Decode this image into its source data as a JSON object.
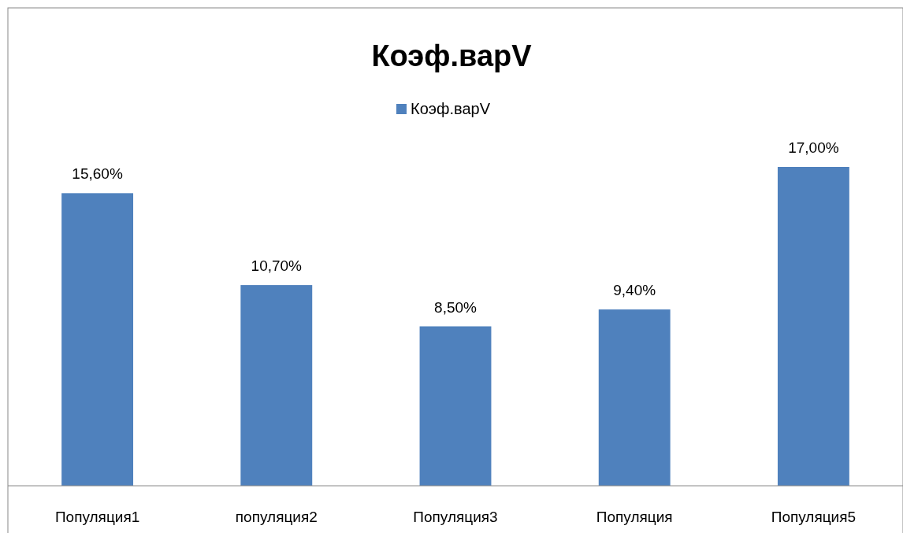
{
  "chart_data": {
    "type": "bar",
    "title": "Коэф.варV",
    "categories": [
      "Популяция1",
      "популяция2",
      "Популяция3",
      "Популяция",
      "Популяция5"
    ],
    "series": [
      {
        "name": "Коэф.варV",
        "color": "#4f81bd",
        "values": [
          15.6,
          10.7,
          8.5,
          9.4,
          17.0
        ],
        "value_labels": [
          "15,60%",
          "10,70%",
          "8,50%",
          "9,40%",
          "17,00%"
        ]
      }
    ],
    "legend": "top"
  }
}
